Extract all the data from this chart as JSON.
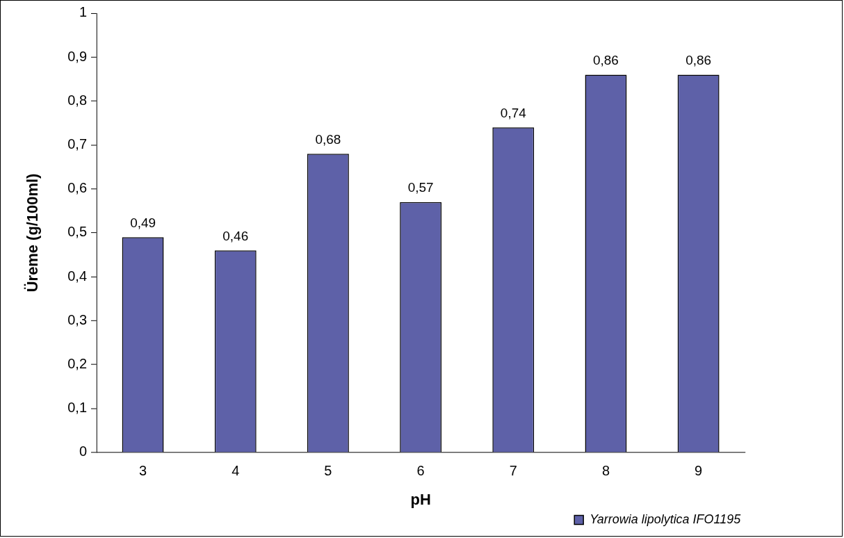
{
  "chart_data": {
    "type": "bar",
    "xlabel": "pH",
    "ylabel": "Üreme (g/100ml)",
    "categories": [
      "3",
      "4",
      "5",
      "6",
      "7",
      "8",
      "9"
    ],
    "series": [
      {
        "name": "Yarrowia lipolytica IFO1195",
        "color": "#5e61a8",
        "values": [
          0.49,
          0.46,
          0.68,
          0.57,
          0.74,
          0.86,
          0.86
        ],
        "value_labels": [
          "0,49",
          "0,46",
          "0,68",
          "0,57",
          "0,74",
          "0,86",
          "0,86"
        ]
      }
    ],
    "ylim": [
      0,
      1
    ],
    "yticks": [
      0,
      {
        "value": 0.1,
        "label": "0,1"
      },
      {
        "value": 0.2,
        "label": "0,2"
      },
      {
        "value": 0.3,
        "label": "0,3"
      },
      {
        "value": 0.4,
        "label": "0,4"
      },
      {
        "value": 0.5,
        "label": "0,5"
      },
      {
        "value": 0.6,
        "label": "0,6"
      },
      {
        "value": 0.7,
        "label": "0,7"
      },
      {
        "value": 0.8,
        "label": "0,8"
      },
      {
        "value": 0.9,
        "label": "0,9"
      },
      1
    ],
    "grid": false,
    "legend": "bottom right"
  }
}
